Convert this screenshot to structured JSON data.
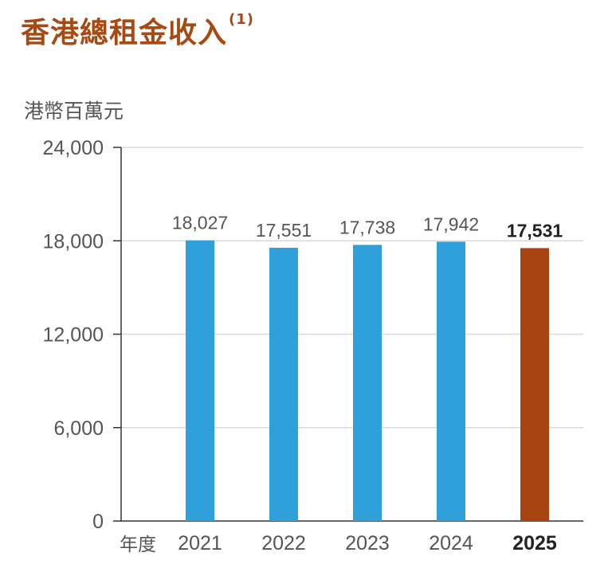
{
  "title": "香港總租金收入",
  "title_note": "(1)",
  "colors": {
    "title": "#a84912",
    "bar": "#30a0db",
    "highlight": "#a84312",
    "grid": "#d9d9d9",
    "axis": "#333333"
  },
  "chart_data": {
    "type": "bar",
    "title": "香港總租金收入",
    "ylabel": "港幣百萬元",
    "xlabel": "年度",
    "categories": [
      "2021",
      "2022",
      "2023",
      "2024",
      "2025"
    ],
    "values": [
      18027,
      17551,
      17738,
      17942,
      17531
    ],
    "value_labels": [
      "18,027",
      "17,551",
      "17,738",
      "17,942",
      "17,531"
    ],
    "highlight_index": 4,
    "ylim": [
      0,
      24000
    ],
    "yticks": [
      0,
      6000,
      12000,
      18000,
      24000
    ],
    "ytick_labels": [
      "0",
      "6,000",
      "12,000",
      "18,000",
      "24,000"
    ],
    "grid": true,
    "legend": "none"
  }
}
